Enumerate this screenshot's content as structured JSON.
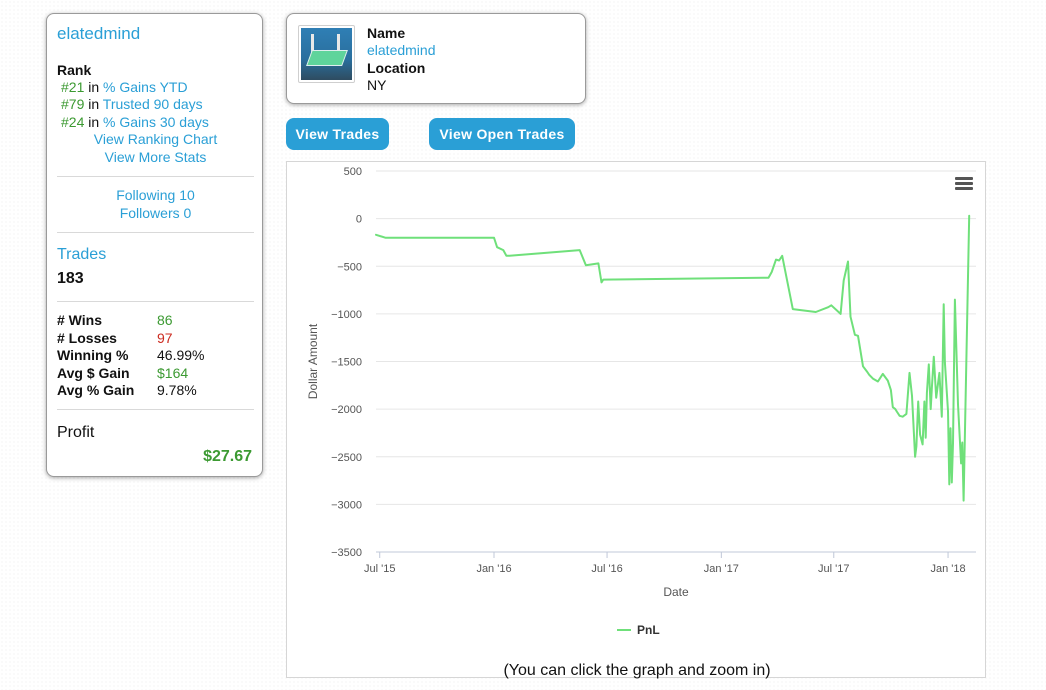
{
  "profile": {
    "username": "elatedmind",
    "rank_heading": "Rank",
    "ranks": [
      {
        "num": "#21",
        "in": "in",
        "category": "% Gains YTD"
      },
      {
        "num": "#79",
        "in": "in",
        "category": "Trusted 90 days"
      },
      {
        "num": "#24",
        "in": "in",
        "category": "% Gains 30 days"
      }
    ],
    "view_ranking_chart": "View Ranking Chart",
    "view_more_stats": "View More Stats",
    "following": "Following 10",
    "followers": "Followers 0",
    "trades_label": "Trades",
    "trades_count": "183",
    "stats": [
      {
        "label": "# Wins",
        "value": "86",
        "color": "#3c9a32"
      },
      {
        "label": "# Losses",
        "value": "97",
        "color": "#cc2b20"
      },
      {
        "label": "Winning %",
        "value": "46.99%",
        "color": "#111111"
      },
      {
        "label": "Avg $ Gain",
        "value": "$164",
        "color": "#3c9a32"
      },
      {
        "label": "Avg % Gain",
        "value": "9.78%",
        "color": "#111111"
      }
    ],
    "profit_label": "Profit",
    "profit_value": "$27.67"
  },
  "name_card": {
    "name_label": "Name",
    "name_value": "elatedmind",
    "location_label": "Location",
    "location_value": "NY"
  },
  "buttons": {
    "view_trades": "View Trades",
    "view_open_trades": "View Open Trades"
  },
  "chart_hint": "(You can click the graph and zoom in)",
  "chart_data": {
    "type": "line",
    "title": "",
    "xlabel": "Date",
    "ylabel": "Dollar Amount",
    "ylim": [
      -3500,
      500
    ],
    "yticks": [
      500,
      0,
      -500,
      -1000,
      -1500,
      -2000,
      -2500,
      -3000,
      -3500
    ],
    "ytick_labels": [
      "500",
      "0",
      "−500",
      "−1000",
      "−1500",
      "−2000",
      "−2500",
      "−3000",
      "−3500"
    ],
    "xlim": [
      "2015-06-25",
      "2018-02-15"
    ],
    "xticks": [
      "2015-07-01",
      "2016-01-01",
      "2016-07-01",
      "2017-01-01",
      "2017-07-01",
      "2018-01-01"
    ],
    "xtick_labels": [
      "Jul '15",
      "Jan '16",
      "Jul '16",
      "Jan '17",
      "Jul '17",
      "Jan '18"
    ],
    "legend_position": "bottom-center",
    "grid": true,
    "series": [
      {
        "name": "PnL",
        "color": "#6fe07a",
        "x": [
          "2015-06-25",
          "2015-07-10",
          "2016-01-01",
          "2016-01-06",
          "2016-01-16",
          "2016-01-21",
          "2016-01-26",
          "2016-05-18",
          "2016-05-28",
          "2016-06-17",
          "2016-06-22",
          "2016-06-25",
          "2017-03-18",
          "2017-03-23",
          "2017-03-30",
          "2017-04-04",
          "2017-04-09",
          "2017-04-26",
          "2017-06-02",
          "2017-06-22",
          "2017-06-27",
          "2017-07-12",
          "2017-07-17",
          "2017-07-24",
          "2017-07-28",
          "2017-08-04",
          "2017-08-09",
          "2017-08-17",
          "2017-08-24",
          "2017-08-27",
          "2017-09-02",
          "2017-09-10",
          "2017-09-18",
          "2017-09-26",
          "2017-10-01",
          "2017-10-04",
          "2017-10-08",
          "2017-10-11",
          "2017-10-15",
          "2017-10-20",
          "2017-10-26",
          "2017-10-31",
          "2017-11-04",
          "2017-11-09",
          "2017-11-11",
          "2017-11-14",
          "2017-11-17",
          "2017-11-21",
          "2017-11-24",
          "2017-11-26",
          "2017-11-28",
          "2017-12-01",
          "2017-12-04",
          "2017-12-06",
          "2017-12-09",
          "2017-12-13",
          "2017-12-18",
          "2017-12-22",
          "2017-12-25",
          "2017-12-27",
          "2018-01-01",
          "2018-01-03",
          "2018-01-05",
          "2018-01-07",
          "2018-01-09",
          "2018-01-12",
          "2018-01-17",
          "2018-01-22",
          "2018-01-24",
          "2018-01-26",
          "2018-02-04"
        ],
        "y": [
          -170,
          -200,
          -200,
          -300,
          -330,
          -390,
          -390,
          -330,
          -490,
          -470,
          -670,
          -640,
          -620,
          -560,
          -430,
          -440,
          -390,
          -950,
          -980,
          -930,
          -910,
          -1000,
          -650,
          -450,
          -1030,
          -1220,
          -1230,
          -1550,
          -1610,
          -1640,
          -1680,
          -1710,
          -1630,
          -1700,
          -1800,
          -1980,
          -2000,
          -2030,
          -2070,
          -2080,
          -2050,
          -1620,
          -1860,
          -2500,
          -2390,
          -1920,
          -2270,
          -2370,
          -1920,
          -2300,
          -1830,
          -1530,
          -2000,
          -1770,
          -1450,
          -1880,
          -1620,
          -2080,
          -900,
          -1510,
          -2020,
          -2790,
          -2200,
          -2770,
          -2360,
          -850,
          -1950,
          -2570,
          -2350,
          -2960,
          30
        ]
      }
    ]
  }
}
